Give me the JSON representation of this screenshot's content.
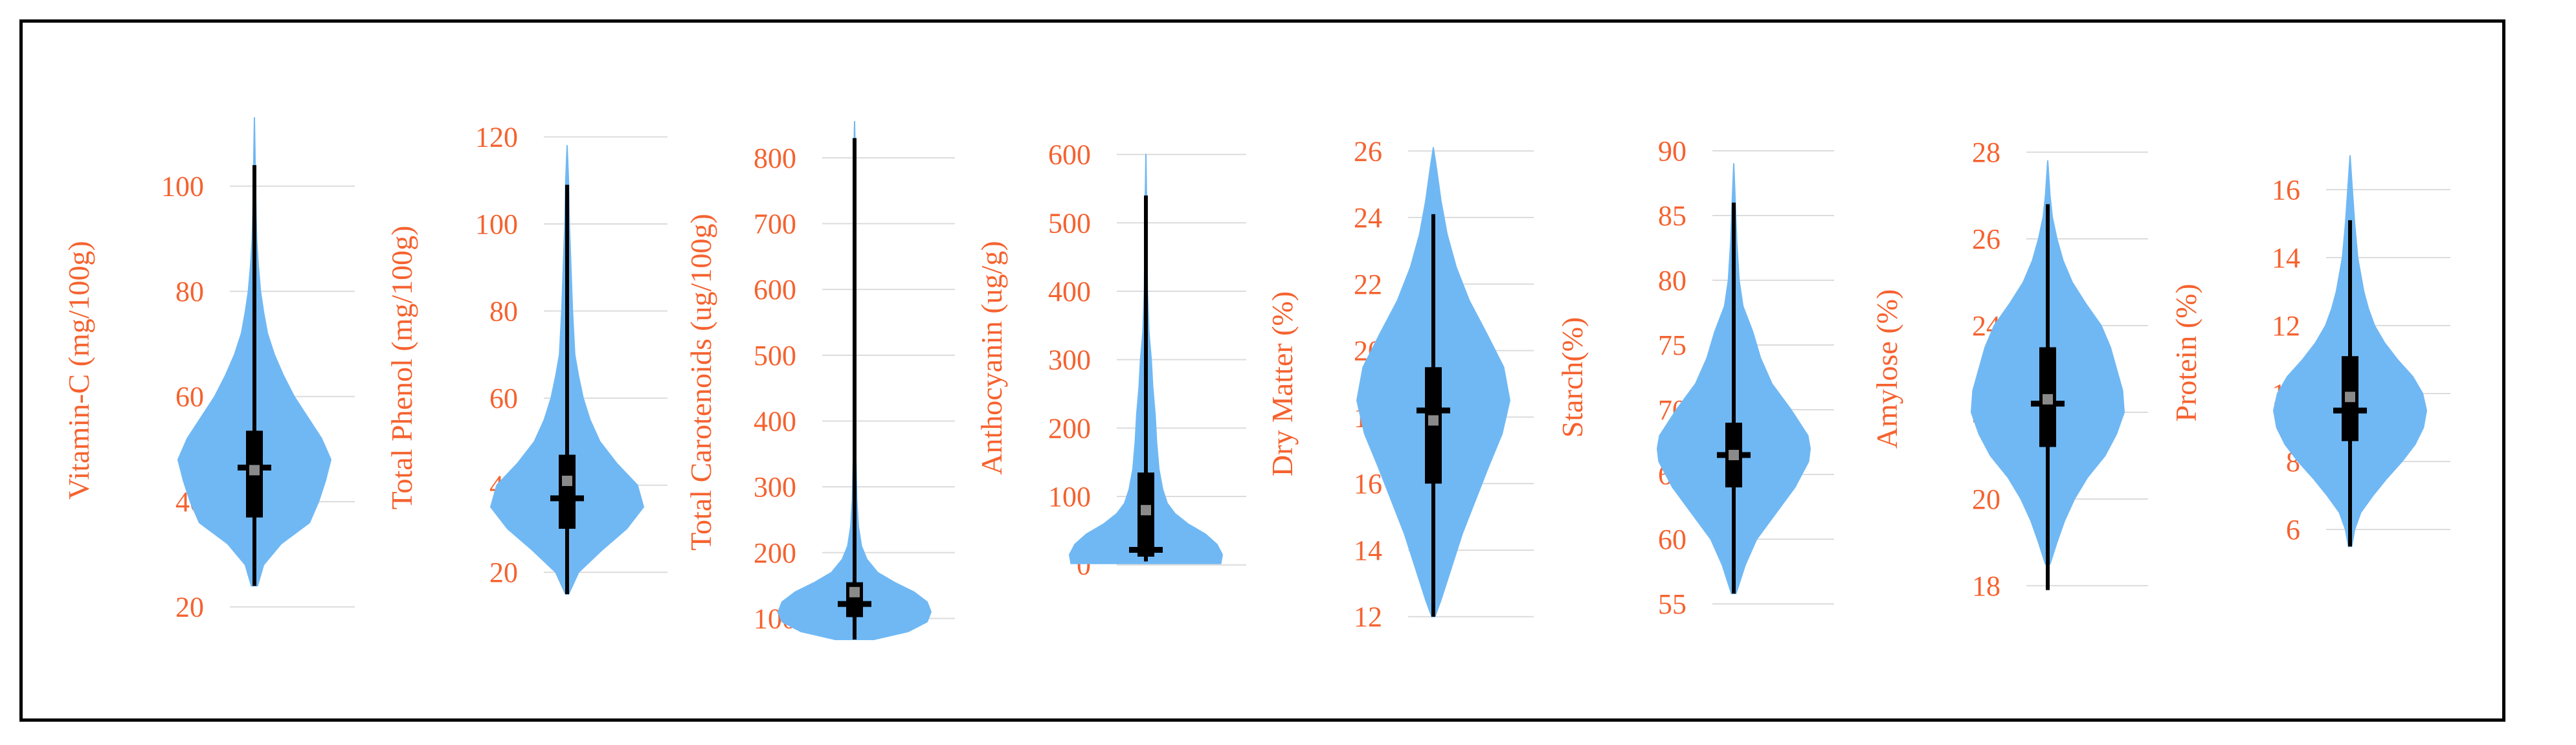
{
  "colors": {
    "violin_fill": "#70b8f4",
    "box": "#000000",
    "mean_marker": "#8a8a8a",
    "label": "#f5622f",
    "gridline": "#dcdcdc",
    "frame": "#000000"
  },
  "chart_data": [
    {
      "type": "violin",
      "ylabel": "Vitamin-C (mg/100g)",
      "ylim": [
        17,
        113
      ],
      "ticks": [
        20,
        40,
        60,
        80,
        100
      ],
      "tick_labels": [
        "20",
        "40",
        "60",
        "80",
        "100"
      ],
      "range": [
        24,
        104
      ],
      "q1": 37,
      "median": 46.5,
      "q3": 53.5,
      "mean": 46,
      "density": [
        [
          24,
          0.04
        ],
        [
          28,
          0.12
        ],
        [
          32,
          0.35
        ],
        [
          36,
          0.72
        ],
        [
          40,
          0.84
        ],
        [
          44,
          0.93
        ],
        [
          48,
          1.0
        ],
        [
          52,
          0.88
        ],
        [
          56,
          0.7
        ],
        [
          60,
          0.52
        ],
        [
          64,
          0.38
        ],
        [
          68,
          0.26
        ],
        [
          72,
          0.17
        ],
        [
          76,
          0.12
        ],
        [
          80,
          0.08
        ],
        [
          85,
          0.05
        ],
        [
          90,
          0.03
        ],
        [
          95,
          0.02
        ],
        [
          100,
          0.015
        ],
        [
          104,
          0.01
        ],
        [
          113,
          0.0
        ]
      ]
    },
    {
      "type": "violin",
      "ylabel": "Total Phenol (mg/100g)",
      "ylim": [
        12,
        122
      ],
      "ticks": [
        20,
        40,
        60,
        80,
        100,
        120
      ],
      "tick_labels": [
        "20",
        "40",
        "60",
        "80",
        "100",
        "120"
      ],
      "range": [
        15,
        109
      ],
      "q1": 30,
      "median": 37,
      "q3": 47,
      "mean": 41,
      "density": [
        [
          15,
          0.02
        ],
        [
          20,
          0.15
        ],
        [
          25,
          0.45
        ],
        [
          30,
          0.78
        ],
        [
          35,
          1.0
        ],
        [
          40,
          0.92
        ],
        [
          45,
          0.65
        ],
        [
          50,
          0.43
        ],
        [
          55,
          0.3
        ],
        [
          60,
          0.21
        ],
        [
          65,
          0.15
        ],
        [
          70,
          0.1
        ],
        [
          80,
          0.07
        ],
        [
          90,
          0.05
        ],
        [
          100,
          0.03
        ],
        [
          109,
          0.02
        ],
        [
          118,
          0.0
        ]
      ]
    },
    {
      "type": "violin",
      "ylabel": "Total Carotenoids (ug/100g)",
      "ylim": [
        68,
        850
      ],
      "ticks": [
        100,
        200,
        300,
        400,
        500,
        600,
        700,
        800
      ],
      "tick_labels": [
        "100",
        "200",
        "300",
        "400",
        "500",
        "600",
        "700",
        "800"
      ],
      "range": [
        68,
        830
      ],
      "q1": 102,
      "median": 122,
      "q3": 155,
      "mean": 140,
      "density": [
        [
          68,
          0.25
        ],
        [
          80,
          0.7
        ],
        [
          95,
          0.95
        ],
        [
          110,
          1.0
        ],
        [
          125,
          0.95
        ],
        [
          140,
          0.78
        ],
        [
          155,
          0.52
        ],
        [
          170,
          0.3
        ],
        [
          190,
          0.16
        ],
        [
          210,
          0.09
        ],
        [
          240,
          0.05
        ],
        [
          280,
          0.03
        ],
        [
          350,
          0.015
        ],
        [
          500,
          0.008
        ],
        [
          700,
          0.005
        ],
        [
          830,
          0.004
        ],
        [
          855,
          0.0
        ]
      ]
    },
    {
      "type": "violin",
      "ylabel": "Anthocyanin (ug/g)",
      "ylim": [
        -5,
        610
      ],
      "ticks": [
        0,
        100,
        200,
        300,
        400,
        500,
        600
      ],
      "tick_labels": [
        "0",
        "100",
        "200",
        "300",
        "400",
        "500",
        "600"
      ],
      "range": [
        5,
        540
      ],
      "q1": 12,
      "median": 22,
      "q3": 135,
      "mean": 80,
      "density": [
        [
          2,
          0.98
        ],
        [
          15,
          1.0
        ],
        [
          30,
          0.93
        ],
        [
          45,
          0.78
        ],
        [
          60,
          0.55
        ],
        [
          75,
          0.38
        ],
        [
          90,
          0.28
        ],
        [
          110,
          0.22
        ],
        [
          140,
          0.17
        ],
        [
          180,
          0.14
        ],
        [
          220,
          0.12
        ],
        [
          260,
          0.09
        ],
        [
          300,
          0.07
        ],
        [
          340,
          0.04
        ],
        [
          400,
          0.02
        ],
        [
          500,
          0.01
        ],
        [
          540,
          0.008
        ],
        [
          600,
          0.0
        ]
      ]
    },
    {
      "type": "violin",
      "ylabel": "Dry Matter (%)",
      "ylim": [
        11.8,
        26.2
      ],
      "ticks": [
        12,
        14,
        16,
        18,
        20,
        22,
        24,
        26
      ],
      "tick_labels": [
        "12",
        "14",
        "16",
        "18",
        "20",
        "22",
        "24",
        "26"
      ],
      "range": [
        12,
        24.1
      ],
      "q1": 16,
      "median": 18.2,
      "q3": 19.5,
      "mean": 17.9,
      "density": [
        [
          12,
          0.02
        ],
        [
          12.5,
          0.1
        ],
        [
          13.5,
          0.24
        ],
        [
          14.5,
          0.38
        ],
        [
          15.5,
          0.55
        ],
        [
          16.5,
          0.72
        ],
        [
          17.5,
          0.9
        ],
        [
          18.5,
          1.0
        ],
        [
          19.5,
          0.92
        ],
        [
          20.5,
          0.7
        ],
        [
          21.5,
          0.47
        ],
        [
          22.5,
          0.3
        ],
        [
          23.5,
          0.18
        ],
        [
          24.5,
          0.1
        ],
        [
          25.5,
          0.04
        ],
        [
          26.1,
          0.0
        ]
      ]
    },
    {
      "type": "violin",
      "ylabel": "Starch(%)",
      "ylim": [
        54.5,
        90.5
      ],
      "ticks": [
        55,
        60,
        65,
        70,
        75,
        80,
        85,
        90
      ],
      "tick_labels": [
        "55",
        "60",
        "65",
        "70",
        "75",
        "80",
        "85",
        "90"
      ],
      "range": [
        55.8,
        86
      ],
      "q1": 64,
      "median": 66.5,
      "q3": 69,
      "mean": 66.5,
      "density": [
        [
          55.8,
          0.03
        ],
        [
          58,
          0.15
        ],
        [
          60,
          0.3
        ],
        [
          62,
          0.55
        ],
        [
          64,
          0.8
        ],
        [
          66,
          0.98
        ],
        [
          67,
          1.0
        ],
        [
          68,
          0.97
        ],
        [
          70,
          0.75
        ],
        [
          72,
          0.5
        ],
        [
          74,
          0.35
        ],
        [
          76,
          0.25
        ],
        [
          78,
          0.12
        ],
        [
          80,
          0.07
        ],
        [
          83,
          0.04
        ],
        [
          86,
          0.02
        ],
        [
          89,
          0.0
        ]
      ]
    },
    {
      "type": "violin",
      "ylabel": "Amylose (%)",
      "ylim": [
        17.7,
        28.3
      ],
      "ticks": [
        18,
        20,
        22,
        24,
        26,
        28
      ],
      "tick_labels": [
        "18",
        "20",
        "22",
        "24",
        "26",
        "28"
      ],
      "range": [
        17.9,
        26.8
      ],
      "q1": 21.2,
      "median": 22.2,
      "q3": 23.5,
      "mean": 22.3,
      "density": [
        [
          18.5,
          0.03
        ],
        [
          19,
          0.12
        ],
        [
          19.5,
          0.22
        ],
        [
          20,
          0.35
        ],
        [
          20.5,
          0.52
        ],
        [
          21,
          0.75
        ],
        [
          21.5,
          0.9
        ],
        [
          22,
          1.0
        ],
        [
          22.5,
          0.98
        ],
        [
          23,
          0.9
        ],
        [
          23.5,
          0.82
        ],
        [
          24,
          0.7
        ],
        [
          24.5,
          0.5
        ],
        [
          25,
          0.32
        ],
        [
          25.5,
          0.2
        ],
        [
          26,
          0.12
        ],
        [
          26.5,
          0.06
        ],
        [
          27,
          0.03
        ],
        [
          27.8,
          0.0
        ]
      ]
    },
    {
      "type": "violin",
      "ylabel": "Protein (%)",
      "ylim": [
        5.2,
        17.2
      ],
      "ticks": [
        6,
        8,
        10,
        12,
        14,
        16
      ],
      "tick_labels": [
        "6",
        "8",
        "10",
        "12",
        "14",
        "16"
      ],
      "range": [
        5.5,
        15.1
      ],
      "q1": 8.6,
      "median": 9.5,
      "q3": 11.1,
      "mean": 9.9,
      "density": [
        [
          5.5,
          0.02
        ],
        [
          6,
          0.06
        ],
        [
          6.5,
          0.14
        ],
        [
          7,
          0.3
        ],
        [
          7.5,
          0.48
        ],
        [
          8,
          0.68
        ],
        [
          8.5,
          0.85
        ],
        [
          9,
          0.96
        ],
        [
          9.5,
          1.0
        ],
        [
          10,
          0.95
        ],
        [
          10.5,
          0.82
        ],
        [
          11,
          0.62
        ],
        [
          11.5,
          0.45
        ],
        [
          12,
          0.32
        ],
        [
          12.5,
          0.24
        ],
        [
          13,
          0.18
        ],
        [
          14,
          0.1
        ],
        [
          15,
          0.06
        ],
        [
          16,
          0.03
        ],
        [
          17,
          0.0
        ]
      ]
    }
  ]
}
